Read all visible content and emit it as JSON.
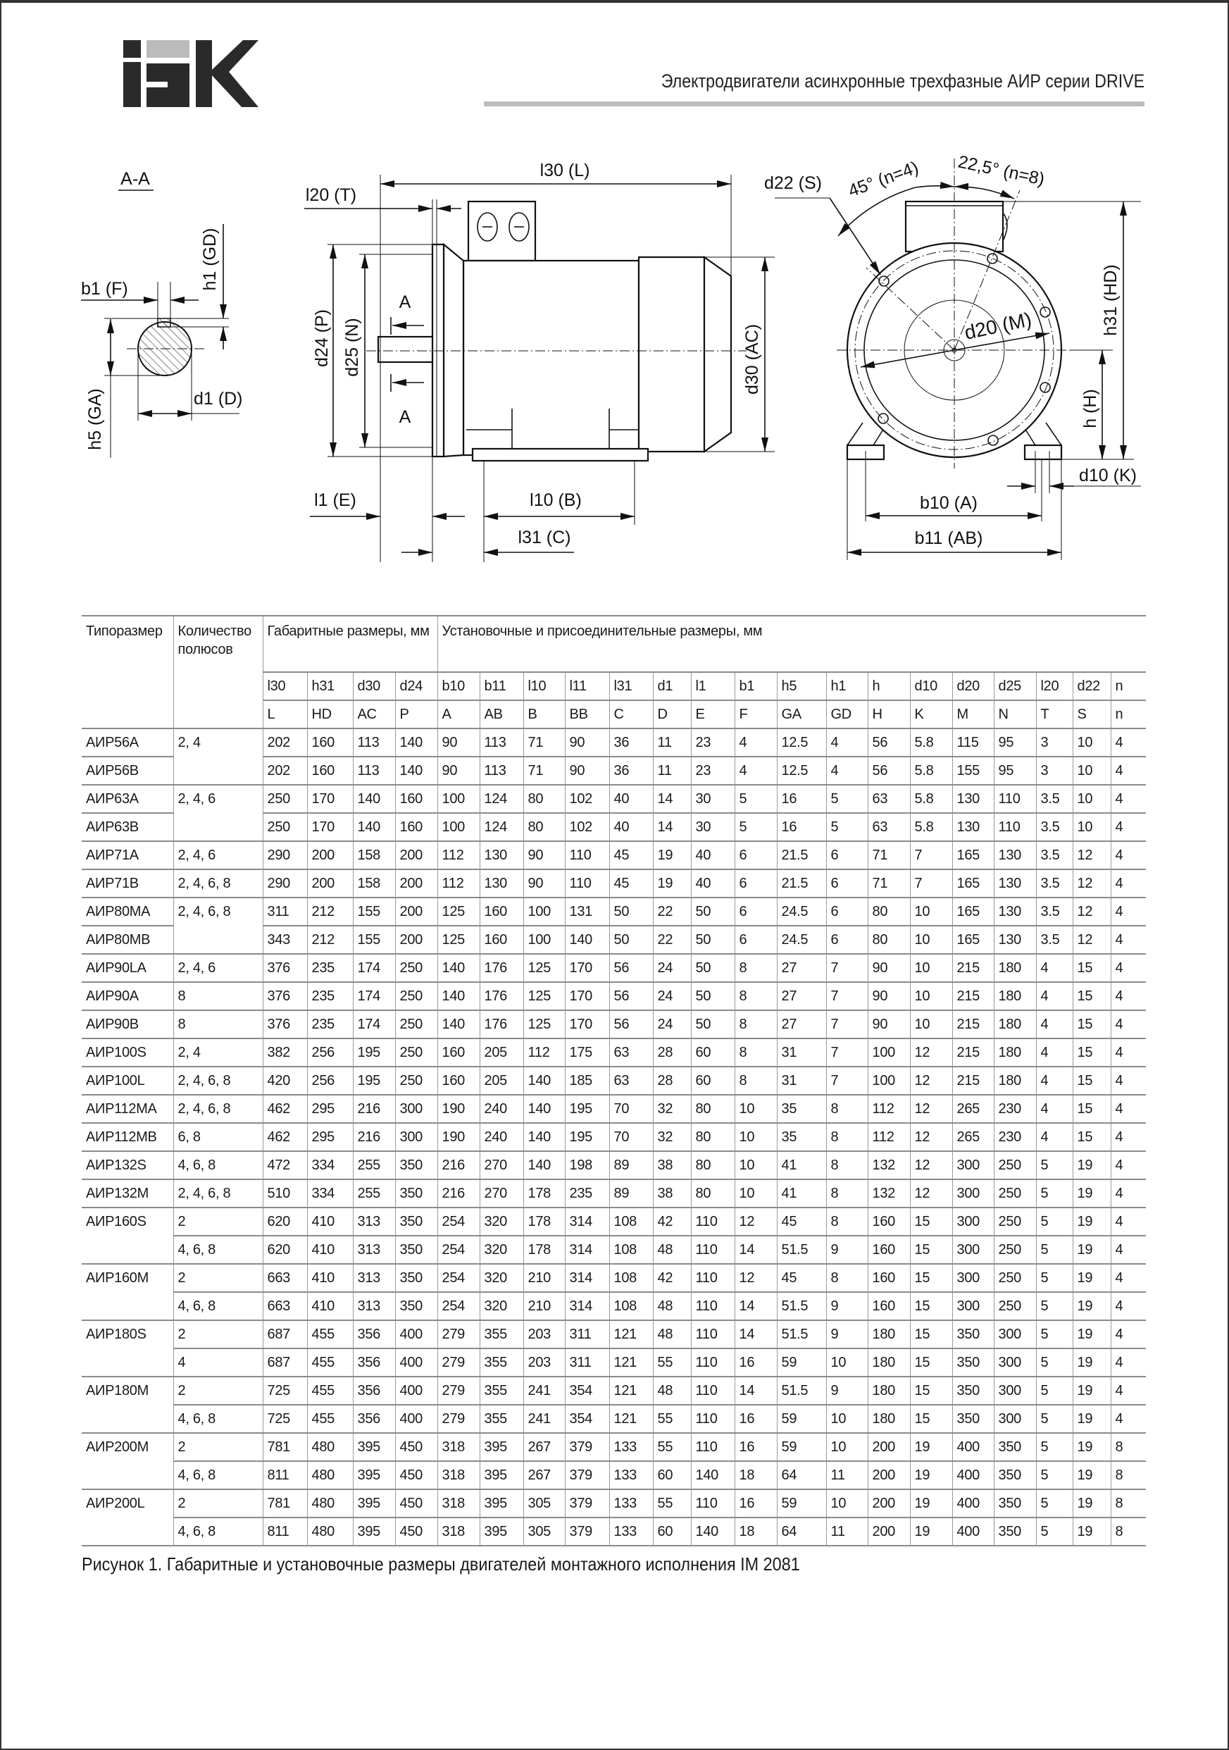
{
  "header": {
    "logo_text": "IEK",
    "title": "Электродвигатели асинхронные трехфазные АИР серии DRIVE",
    "brand_colors": {
      "dark": "#2a2a2a",
      "gray": "#bbbbbb"
    }
  },
  "drawing": {
    "section_label": "A-A",
    "section_marker": "A",
    "labels": {
      "b1": "b1 (F)",
      "h1": "h1 (GD)",
      "h5": "h5 (GA)",
      "d1": "d1 (D)",
      "l30": "l30 (L)",
      "l20": "l20 (T)",
      "d24": "d24 (P)",
      "d25": "d25 (N)",
      "d30": "d30 (AC)",
      "l1": "l1 (E)",
      "l10": "l10 (B)",
      "l31": "l31 (C)",
      "d22": "d22  (S)",
      "angle45": "45° (n=4)",
      "angle22": "22,5° (n=8)",
      "d20": "d20 (M)",
      "h31": "h31 (HD)",
      "h": "h (H)",
      "d10": "d10 (K)",
      "b10": "b10 (A)",
      "b11": "b11 (AB)"
    }
  },
  "table": {
    "headers": {
      "type": "Типоразмер",
      "poles": "Количество полюсов",
      "overall": "Габаритные размеры, мм",
      "mounting": "Установочные и присоединительные размеры, мм"
    },
    "codes": [
      "l30",
      "h31",
      "d30",
      "d24",
      "b10",
      "b11",
      "l10",
      "l11",
      "l31",
      "d1",
      "l1",
      "b1",
      "h5",
      "h1",
      "h",
      "d10",
      "d20",
      "d25",
      "l20",
      "d22",
      "n"
    ],
    "iec_codes": [
      "L",
      "HD",
      "AC",
      "P",
      "A",
      "AB",
      "B",
      "BB",
      "C",
      "D",
      "E",
      "F",
      "GA",
      "GD",
      "H",
      "K",
      "M",
      "N",
      "T",
      "S",
      "n"
    ],
    "rows": [
      [
        "АИР56А",
        "2, 4",
        "202",
        "160",
        "113",
        "140",
        "90",
        "113",
        "71",
        "90",
        "36",
        "11",
        "23",
        "4",
        "12.5",
        "4",
        "56",
        "5.8",
        "115",
        "95",
        "3",
        "10",
        "4"
      ],
      [
        "АИР56В",
        "",
        "202",
        "160",
        "113",
        "140",
        "90",
        "113",
        "71",
        "90",
        "36",
        "11",
        "23",
        "4",
        "12.5",
        "4",
        "56",
        "5.8",
        "155",
        "95",
        "3",
        "10",
        "4"
      ],
      [
        "АИР63А",
        "2, 4, 6",
        "250",
        "170",
        "140",
        "160",
        "100",
        "124",
        "80",
        "102",
        "40",
        "14",
        "30",
        "5",
        "16",
        "5",
        "63",
        "5.8",
        "130",
        "110",
        "3.5",
        "10",
        "4"
      ],
      [
        "АИР63В",
        "",
        "250",
        "170",
        "140",
        "160",
        "100",
        "124",
        "80",
        "102",
        "40",
        "14",
        "30",
        "5",
        "16",
        "5",
        "63",
        "5.8",
        "130",
        "110",
        "3.5",
        "10",
        "4"
      ],
      [
        "АИР71А",
        "2, 4, 6",
        "290",
        "200",
        "158",
        "200",
        "112",
        "130",
        "90",
        "110",
        "45",
        "19",
        "40",
        "6",
        "21.5",
        "6",
        "71",
        "7",
        "165",
        "130",
        "3.5",
        "12",
        "4"
      ],
      [
        "АИР71В",
        "2, 4, 6, 8",
        "290",
        "200",
        "158",
        "200",
        "112",
        "130",
        "90",
        "110",
        "45",
        "19",
        "40",
        "6",
        "21.5",
        "6",
        "71",
        "7",
        "165",
        "130",
        "3.5",
        "12",
        "4"
      ],
      [
        "АИР80МА",
        "2, 4, 6, 8",
        "311",
        "212",
        "155",
        "200",
        "125",
        "160",
        "100",
        "131",
        "50",
        "22",
        "50",
        "6",
        "24.5",
        "6",
        "80",
        "10",
        "165",
        "130",
        "3.5",
        "12",
        "4"
      ],
      [
        "АИР80МВ",
        "",
        "343",
        "212",
        "155",
        "200",
        "125",
        "160",
        "100",
        "140",
        "50",
        "22",
        "50",
        "6",
        "24.5",
        "6",
        "80",
        "10",
        "165",
        "130",
        "3.5",
        "12",
        "4"
      ],
      [
        "АИР90LA",
        "2, 4, 6",
        "376",
        "235",
        "174",
        "250",
        "140",
        "176",
        "125",
        "170",
        "56",
        "24",
        "50",
        "8",
        "27",
        "7",
        "90",
        "10",
        "215",
        "180",
        "4",
        "15",
        "4"
      ],
      [
        "АИР90А",
        "8",
        "376",
        "235",
        "174",
        "250",
        "140",
        "176",
        "125",
        "170",
        "56",
        "24",
        "50",
        "8",
        "27",
        "7",
        "90",
        "10",
        "215",
        "180",
        "4",
        "15",
        "4"
      ],
      [
        "АИР90В",
        "8",
        "376",
        "235",
        "174",
        "250",
        "140",
        "176",
        "125",
        "170",
        "56",
        "24",
        "50",
        "8",
        "27",
        "7",
        "90",
        "10",
        "215",
        "180",
        "4",
        "15",
        "4"
      ],
      [
        "АИР100S",
        "2, 4",
        "382",
        "256",
        "195",
        "250",
        "160",
        "205",
        "112",
        "175",
        "63",
        "28",
        "60",
        "8",
        "31",
        "7",
        "100",
        "12",
        "215",
        "180",
        "4",
        "15",
        "4"
      ],
      [
        "АИР100L",
        "2, 4, 6, 8",
        "420",
        "256",
        "195",
        "250",
        "160",
        "205",
        "140",
        "185",
        "63",
        "28",
        "60",
        "8",
        "31",
        "7",
        "100",
        "12",
        "215",
        "180",
        "4",
        "15",
        "4"
      ],
      [
        "АИР112МА",
        "2, 4, 6, 8",
        "462",
        "295",
        "216",
        "300",
        "190",
        "240",
        "140",
        "195",
        "70",
        "32",
        "80",
        "10",
        "35",
        "8",
        "112",
        "12",
        "265",
        "230",
        "4",
        "15",
        "4"
      ],
      [
        "АИР112МВ",
        "6, 8",
        "462",
        "295",
        "216",
        "300",
        "190",
        "240",
        "140",
        "195",
        "70",
        "32",
        "80",
        "10",
        "35",
        "8",
        "112",
        "12",
        "265",
        "230",
        "4",
        "15",
        "4"
      ],
      [
        "АИР132S",
        "4, 6, 8",
        "472",
        "334",
        "255",
        "350",
        "216",
        "270",
        "140",
        "198",
        "89",
        "38",
        "80",
        "10",
        "41",
        "8",
        "132",
        "12",
        "300",
        "250",
        "5",
        "19",
        "4"
      ],
      [
        "АИР132М",
        "2, 4, 6, 8",
        "510",
        "334",
        "255",
        "350",
        "216",
        "270",
        "178",
        "235",
        "89",
        "38",
        "80",
        "10",
        "41",
        "8",
        "132",
        "12",
        "300",
        "250",
        "5",
        "19",
        "4"
      ],
      [
        "АИР160S",
        "2",
        "620",
        "410",
        "313",
        "350",
        "254",
        "320",
        "178",
        "314",
        "108",
        "42",
        "110",
        "12",
        "45",
        "8",
        "160",
        "15",
        "300",
        "250",
        "5",
        "19",
        "4"
      ],
      [
        "",
        "4, 6, 8",
        "620",
        "410",
        "313",
        "350",
        "254",
        "320",
        "178",
        "314",
        "108",
        "48",
        "110",
        "14",
        "51.5",
        "9",
        "160",
        "15",
        "300",
        "250",
        "5",
        "19",
        "4"
      ],
      [
        "АИР160М",
        "2",
        "663",
        "410",
        "313",
        "350",
        "254",
        "320",
        "210",
        "314",
        "108",
        "42",
        "110",
        "12",
        "45",
        "8",
        "160",
        "15",
        "300",
        "250",
        "5",
        "19",
        "4"
      ],
      [
        "",
        "4, 6, 8",
        "663",
        "410",
        "313",
        "350",
        "254",
        "320",
        "210",
        "314",
        "108",
        "48",
        "110",
        "14",
        "51.5",
        "9",
        "160",
        "15",
        "300",
        "250",
        "5",
        "19",
        "4"
      ],
      [
        "АИР180S",
        "2",
        "687",
        "455",
        "356",
        "400",
        "279",
        "355",
        "203",
        "311",
        "121",
        "48",
        "110",
        "14",
        "51.5",
        "9",
        "180",
        "15",
        "350",
        "300",
        "5",
        "19",
        "4"
      ],
      [
        "",
        "4",
        "687",
        "455",
        "356",
        "400",
        "279",
        "355",
        "203",
        "311",
        "121",
        "55",
        "110",
        "16",
        "59",
        "10",
        "180",
        "15",
        "350",
        "300",
        "5",
        "19",
        "4"
      ],
      [
        "АИР180М",
        "2",
        "725",
        "455",
        "356",
        "400",
        "279",
        "355",
        "241",
        "354",
        "121",
        "48",
        "110",
        "14",
        "51.5",
        "9",
        "180",
        "15",
        "350",
        "300",
        "5",
        "19",
        "4"
      ],
      [
        "",
        "4, 6, 8",
        "725",
        "455",
        "356",
        "400",
        "279",
        "355",
        "241",
        "354",
        "121",
        "55",
        "110",
        "16",
        "59",
        "10",
        "180",
        "15",
        "350",
        "300",
        "5",
        "19",
        "4"
      ],
      [
        "АИР200М",
        "2",
        "781",
        "480",
        "395",
        "450",
        "318",
        "395",
        "267",
        "379",
        "133",
        "55",
        "110",
        "16",
        "59",
        "10",
        "200",
        "19",
        "400",
        "350",
        "5",
        "19",
        "8"
      ],
      [
        "",
        "4, 6, 8",
        "811",
        "480",
        "395",
        "450",
        "318",
        "395",
        "267",
        "379",
        "133",
        "60",
        "140",
        "18",
        "64",
        "11",
        "200",
        "19",
        "400",
        "350",
        "5",
        "19",
        "8"
      ],
      [
        "АИР200L",
        "2",
        "781",
        "480",
        "395",
        "450",
        "318",
        "395",
        "305",
        "379",
        "133",
        "55",
        "110",
        "16",
        "59",
        "10",
        "200",
        "19",
        "400",
        "350",
        "5",
        "19",
        "8"
      ],
      [
        "",
        "4, 6, 8",
        "811",
        "480",
        "395",
        "450",
        "318",
        "395",
        "305",
        "379",
        "133",
        "60",
        "140",
        "18",
        "64",
        "11",
        "200",
        "19",
        "400",
        "350",
        "5",
        "19",
        "8"
      ]
    ]
  },
  "caption": "Рисунок 1. Габаритные и установочные размеры двигателей монтажного исполнения IM 2081"
}
